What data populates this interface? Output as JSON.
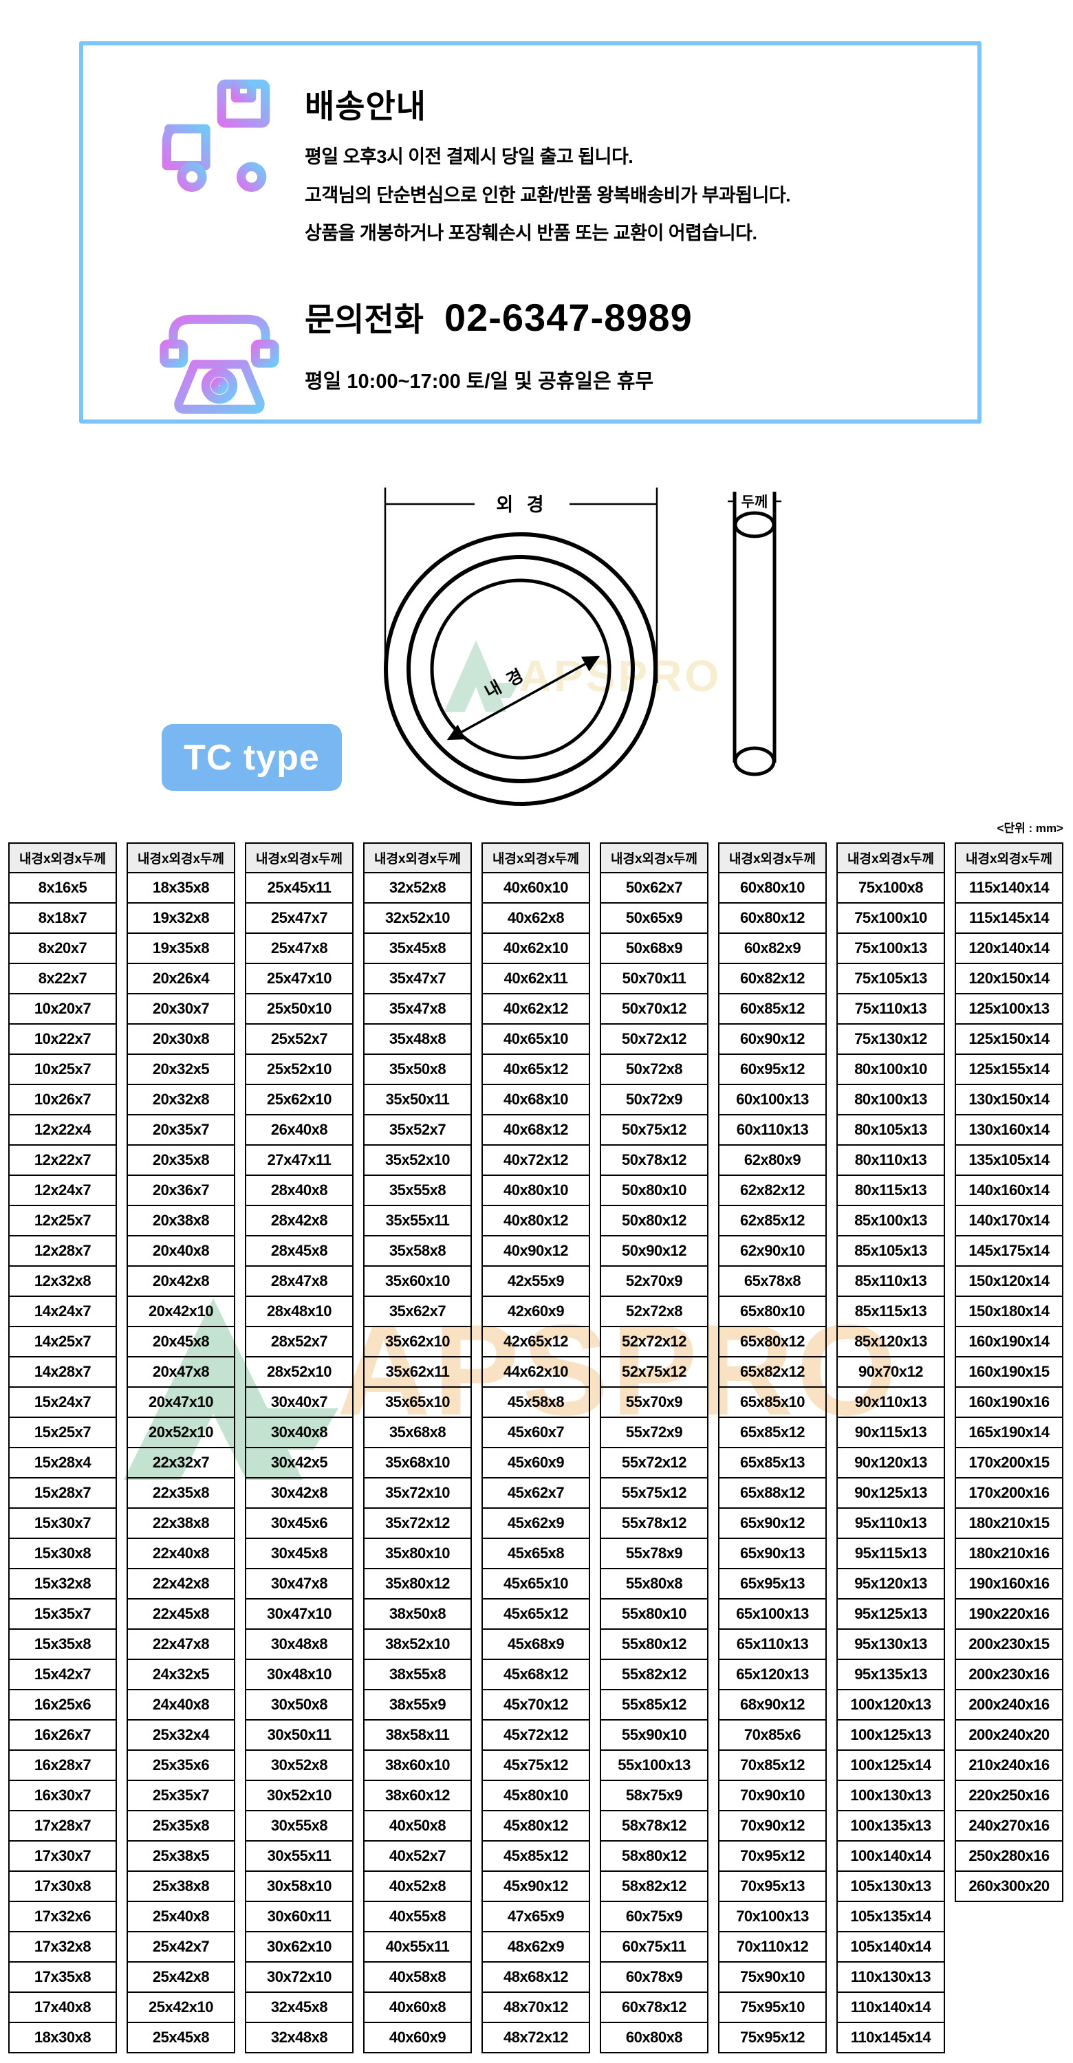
{
  "banner": {
    "title": "배송안내",
    "line1": "평일 오후3시 이전 결제시 당일 출고 됩니다.",
    "line2": "고객님의 단순변심으로 인한 교환/반품 왕복배송비가 부과됩니다.",
    "line3": "상품을 개봉하거나 포장훼손시 반품 또는 교환이 어렵습니다.",
    "phone_label": "문의전화",
    "phone_number": "02-6347-8989",
    "hours": "평일 10:00~17:00 토/일 및 공휴일은 휴무"
  },
  "diagram": {
    "outer_diameter_label": "외 경",
    "inner_diameter_label": "내 경",
    "thickness_label": "두께",
    "type_badge": "TC type"
  },
  "watermark": {
    "logo_text": "APSPRO"
  },
  "table": {
    "unit_note": "<단위 : mm>",
    "column_header": "내경x외경x두께",
    "columns": [
      [
        "8x16x5",
        "8x18x7",
        "8x20x7",
        "8x22x7",
        "10x20x7",
        "10x22x7",
        "10x25x7",
        "10x26x7",
        "12x22x4",
        "12x22x7",
        "12x24x7",
        "12x25x7",
        "12x28x7",
        "12x32x8",
        "14x24x7",
        "14x25x7",
        "14x28x7",
        "15x24x7",
        "15x25x7",
        "15x28x4",
        "15x28x7",
        "15x30x7",
        "15x30x8",
        "15x32x8",
        "15x35x7",
        "15x35x8",
        "15x42x7",
        "16x25x6",
        "16x26x7",
        "16x28x7",
        "16x30x7",
        "17x28x7",
        "17x30x7",
        "17x30x8",
        "17x32x6",
        "17x32x8",
        "17x35x8",
        "17x40x8",
        "18x30x8"
      ],
      [
        "18x35x8",
        "19x32x8",
        "19x35x8",
        "20x26x4",
        "20x30x7",
        "20x30x8",
        "20x32x5",
        "20x32x8",
        "20x35x7",
        "20x35x8",
        "20x36x7",
        "20x38x8",
        "20x40x8",
        "20x42x8",
        "20x42x10",
        "20x45x8",
        "20x47x8",
        "20x47x10",
        "20x52x10",
        "22x32x7",
        "22x35x8",
        "22x38x8",
        "22x40x8",
        "22x42x8",
        "22x45x8",
        "22x47x8",
        "24x32x5",
        "24x40x8",
        "25x32x4",
        "25x35x6",
        "25x35x7",
        "25x35x8",
        "25x38x5",
        "25x38x8",
        "25x40x8",
        "25x42x7",
        "25x42x8",
        "25x42x10",
        "25x45x8"
      ],
      [
        "25x45x11",
        "25x47x7",
        "25x47x8",
        "25x47x10",
        "25x50x10",
        "25x52x7",
        "25x52x10",
        "25x62x10",
        "26x40x8",
        "27x47x11",
        "28x40x8",
        "28x42x8",
        "28x45x8",
        "28x47x8",
        "28x48x10",
        "28x52x7",
        "28x52x10",
        "30x40x7",
        "30x40x8",
        "30x42x5",
        "30x42x8",
        "30x45x6",
        "30x45x8",
        "30x47x8",
        "30x47x10",
        "30x48x8",
        "30x48x10",
        "30x50x8",
        "30x50x11",
        "30x52x8",
        "30x52x10",
        "30x55x8",
        "30x55x11",
        "30x58x10",
        "30x60x11",
        "30x62x10",
        "30x72x10",
        "32x45x8",
        "32x48x8"
      ],
      [
        "32x52x8",
        "32x52x10",
        "35x45x8",
        "35x47x7",
        "35x47x8",
        "35x48x8",
        "35x50x8",
        "35x50x11",
        "35x52x7",
        "35x52x10",
        "35x55x8",
        "35x55x11",
        "35x58x8",
        "35x60x10",
        "35x62x7",
        "35x62x10",
        "35x62x11",
        "35x65x10",
        "35x68x8",
        "35x68x10",
        "35x72x10",
        "35x72x12",
        "35x80x10",
        "35x80x12",
        "38x50x8",
        "38x52x10",
        "38x55x8",
        "38x55x9",
        "38x58x11",
        "38x60x10",
        "38x60x12",
        "40x50x8",
        "40x52x7",
        "40x52x8",
        "40x55x8",
        "40x55x11",
        "40x58x8",
        "40x60x8",
        "40x60x9"
      ],
      [
        "40x60x10",
        "40x62x8",
        "40x62x10",
        "40x62x11",
        "40x62x12",
        "40x65x10",
        "40x65x12",
        "40x68x10",
        "40x68x12",
        "40x72x12",
        "40x80x10",
        "40x80x12",
        "40x90x12",
        "42x55x9",
        "42x60x9",
        "42x65x12",
        "44x62x10",
        "45x58x8",
        "45x60x7",
        "45x60x9",
        "45x62x7",
        "45x62x9",
        "45x65x8",
        "45x65x10",
        "45x65x12",
        "45x68x9",
        "45x68x12",
        "45x70x12",
        "45x72x12",
        "45x75x12",
        "45x80x10",
        "45x80x12",
        "45x85x12",
        "45x90x12",
        "47x65x9",
        "48x62x9",
        "48x68x12",
        "48x70x12",
        "48x72x12"
      ],
      [
        "50x62x7",
        "50x65x9",
        "50x68x9",
        "50x70x11",
        "50x70x12",
        "50x72x12",
        "50x72x8",
        "50x72x9",
        "50x75x12",
        "50x78x12",
        "50x80x10",
        "50x80x12",
        "50x90x12",
        "52x70x9",
        "52x72x8",
        "52x72x12",
        "52x75x12",
        "55x70x9",
        "55x72x9",
        "55x72x12",
        "55x75x12",
        "55x78x12",
        "55x78x9",
        "55x80x8",
        "55x80x10",
        "55x80x12",
        "55x82x12",
        "55x85x12",
        "55x90x10",
        "55x100x13",
        "58x75x9",
        "58x78x12",
        "58x80x12",
        "58x82x12",
        "60x75x9",
        "60x75x11",
        "60x78x9",
        "60x78x12",
        "60x80x8"
      ],
      [
        "60x80x10",
        "60x80x12",
        "60x82x9",
        "60x82x12",
        "60x85x12",
        "60x90x12",
        "60x95x12",
        "60x100x13",
        "60x110x13",
        "62x80x9",
        "62x82x12",
        "62x85x12",
        "62x90x10",
        "65x78x8",
        "65x80x10",
        "65x80x12",
        "65x82x12",
        "65x85x10",
        "65x85x12",
        "65x85x13",
        "65x88x12",
        "65x90x12",
        "65x90x13",
        "65x95x13",
        "65x100x13",
        "65x110x13",
        "65x120x13",
        "68x90x12",
        "70x85x6",
        "70x85x12",
        "70x90x10",
        "70x90x12",
        "70x95x12",
        "70x95x13",
        "70x100x13",
        "70x110x12",
        "75x90x10",
        "75x95x10",
        "75x95x12"
      ],
      [
        "75x100x8",
        "75x100x10",
        "75x100x13",
        "75x105x13",
        "75x110x13",
        "75x130x12",
        "80x100x10",
        "80x100x13",
        "80x105x13",
        "80x110x13",
        "80x115x13",
        "85x100x13",
        "85x105x13",
        "85x110x13",
        "85x115x13",
        "85x120x13",
        "90x70x12",
        "90x110x13",
        "90x115x13",
        "90x120x13",
        "90x125x13",
        "95x110x13",
        "95x115x13",
        "95x120x13",
        "95x125x13",
        "95x130x13",
        "95x135x13",
        "100x120x13",
        "100x125x13",
        "100x125x14",
        "100x130x13",
        "100x135x13",
        "100x140x14",
        "105x130x13",
        "105x135x14",
        "105x140x14",
        "110x130x13",
        "110x140x14",
        "110x145x14"
      ],
      [
        "115x140x14",
        "115x145x14",
        "120x140x14",
        "120x150x14",
        "125x100x13",
        "125x150x14",
        "125x155x14",
        "130x150x14",
        "130x160x14",
        "135x105x14",
        "140x160x14",
        "140x170x14",
        "145x175x14",
        "150x120x14",
        "150x180x14",
        "160x190x14",
        "160x190x15",
        "160x190x16",
        "165x190x14",
        "170x200x15",
        "170x200x16",
        "180x210x15",
        "180x210x16",
        "190x160x16",
        "190x220x16",
        "200x230x15",
        "200x230x16",
        "200x240x16",
        "200x240x20",
        "210x240x16",
        "220x250x16",
        "240x270x16",
        "250x280x16",
        "260x300x20"
      ]
    ]
  },
  "colors": {
    "banner_border": "#7dc4f8",
    "badge_blue": "#79b7f2",
    "icon_gradient_start": "#d678ee",
    "icon_gradient_end": "#74c7f7",
    "header_bg": "#ededed",
    "watermark_green": "#c3e2d0",
    "watermark_orange": "#f8d9b0",
    "text_black": "#000000"
  }
}
